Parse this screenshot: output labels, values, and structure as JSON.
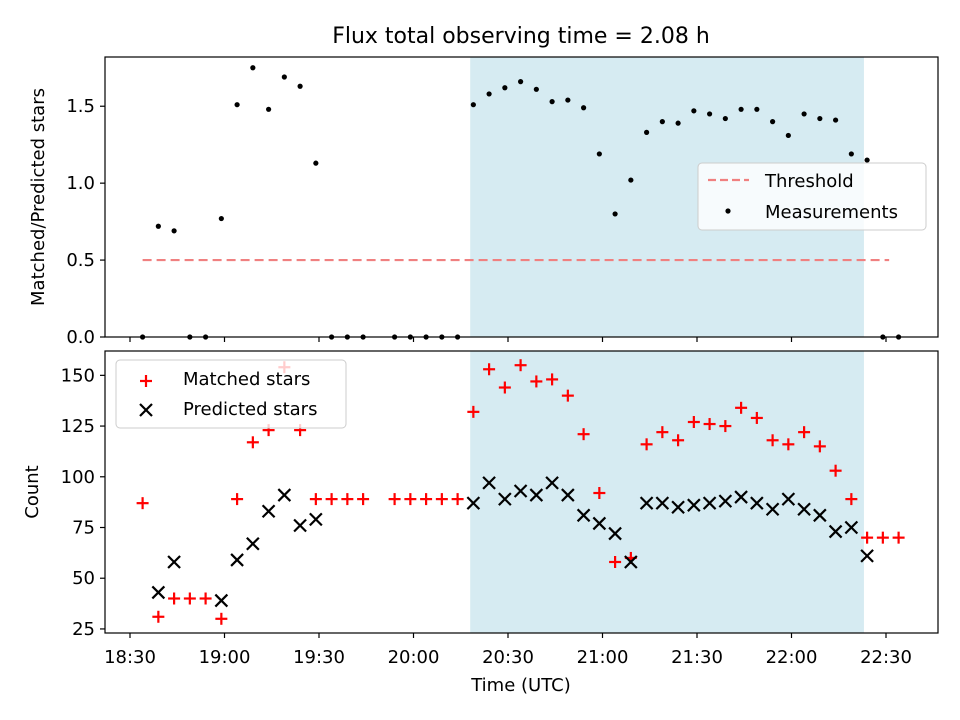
{
  "title": "Flux total observing time = 2.08 h",
  "xlabel": "Time (UTC)",
  "x_ticks": [
    "18:30",
    "19:00",
    "19:30",
    "20:00",
    "20:30",
    "21:00",
    "21:30",
    "22:00",
    "22:30"
  ],
  "highlight_span": {
    "start": "20:18",
    "end": "22:23",
    "color": "#add8e6"
  },
  "chart_data": [
    {
      "type": "scatter",
      "panel": "top",
      "title": "Flux total observing time = 2.08 h",
      "xlabel": "",
      "ylabel": "Matched/Predicted stars",
      "ylim": [
        0,
        1.82
      ],
      "yticks": [
        "0.0",
        "0.5",
        "1.0",
        "1.5"
      ],
      "legend": {
        "placement": "center-right",
        "entries": [
          "Threshold",
          "Measurements"
        ]
      },
      "series": [
        {
          "name": "Threshold",
          "style": "dashed-line",
          "color": "#f08080",
          "x": [
            "18:34",
            "22:31"
          ],
          "y": [
            0.5,
            0.5
          ]
        },
        {
          "name": "Measurements",
          "style": "dot",
          "color": "#000000",
          "x": [
            "18:34",
            "18:39",
            "18:44",
            "18:49",
            "18:54",
            "18:59",
            "19:04",
            "19:09",
            "19:14",
            "19:19",
            "19:24",
            "19:29",
            "19:34",
            "19:39",
            "19:44",
            "19:54",
            "19:59",
            "20:04",
            "20:09",
            "20:14",
            "20:19",
            "20:24",
            "20:29",
            "20:34",
            "20:39",
            "20:44",
            "20:49",
            "20:54",
            "20:59",
            "21:04",
            "21:09",
            "21:14",
            "21:19",
            "21:24",
            "21:29",
            "21:34",
            "21:39",
            "21:44",
            "21:49",
            "21:54",
            "21:59",
            "22:04",
            "22:09",
            "22:14",
            "22:19",
            "22:24",
            "22:29",
            "22:34"
          ],
          "y": [
            0.0,
            0.72,
            0.69,
            0.0,
            0.0,
            0.77,
            1.51,
            1.75,
            1.48,
            1.69,
            1.63,
            1.13,
            0.0,
            0.0,
            0.0,
            0.0,
            0.0,
            0.0,
            0.0,
            0.0,
            1.51,
            1.58,
            1.62,
            1.66,
            1.61,
            1.53,
            1.54,
            1.49,
            1.19,
            0.8,
            1.02,
            1.33,
            1.4,
            1.39,
            1.47,
            1.45,
            1.42,
            1.48,
            1.48,
            1.4,
            1.31,
            1.45,
            1.42,
            1.41,
            1.19,
            1.15,
            0.0,
            0.0
          ]
        }
      ]
    },
    {
      "type": "scatter",
      "panel": "bottom",
      "xlabel": "Time (UTC)",
      "ylabel": "Count",
      "ylim": [
        23,
        162
      ],
      "yticks": [
        "25",
        "50",
        "75",
        "100",
        "125",
        "150"
      ],
      "legend": {
        "placement": "top-left",
        "entries": [
          "Matched stars",
          "Predicted stars"
        ]
      },
      "series": [
        {
          "name": "Matched stars",
          "marker": "+",
          "color": "#ff0000",
          "x": [
            "18:34",
            "18:39",
            "18:44",
            "18:49",
            "18:54",
            "18:59",
            "19:04",
            "19:09",
            "19:14",
            "19:19",
            "19:24",
            "19:29",
            "19:34",
            "19:39",
            "19:44",
            "19:54",
            "19:59",
            "20:04",
            "20:09",
            "20:14",
            "20:19",
            "20:24",
            "20:29",
            "20:34",
            "20:39",
            "20:44",
            "20:49",
            "20:54",
            "20:59",
            "21:04",
            "21:09",
            "21:14",
            "21:19",
            "21:24",
            "21:29",
            "21:34",
            "21:39",
            "21:44",
            "21:49",
            "21:54",
            "21:59",
            "22:04",
            "22:09",
            "22:14",
            "22:19",
            "22:24",
            "22:29",
            "22:34"
          ],
          "y": [
            87,
            31,
            40,
            40,
            40,
            30,
            89,
            117,
            123,
            154,
            123,
            89,
            89,
            89,
            89,
            89,
            89,
            89,
            89,
            89,
            132,
            153,
            144,
            155,
            147,
            148,
            140,
            121,
            92,
            58,
            60,
            116,
            122,
            118,
            127,
            126,
            125,
            134,
            129,
            118,
            116,
            122,
            115,
            103,
            89,
            70,
            70,
            70
          ]
        },
        {
          "name": "Predicted stars",
          "marker": "x",
          "color": "#000000",
          "x": [
            "18:39",
            "18:44",
            "18:59",
            "19:04",
            "19:09",
            "19:14",
            "19:19",
            "19:24",
            "19:29",
            "20:19",
            "20:24",
            "20:29",
            "20:34",
            "20:39",
            "20:44",
            "20:49",
            "20:54",
            "20:59",
            "21:04",
            "21:09",
            "21:14",
            "21:19",
            "21:24",
            "21:29",
            "21:34",
            "21:39",
            "21:44",
            "21:49",
            "21:54",
            "21:59",
            "22:04",
            "22:09",
            "22:14",
            "22:19",
            "22:24"
          ],
          "y": [
            43,
            58,
            39,
            59,
            67,
            83,
            91,
            76,
            79,
            87,
            97,
            89,
            93,
            91,
            97,
            91,
            81,
            77,
            72,
            58,
            87,
            87,
            85,
            86,
            87,
            88,
            90,
            87,
            84,
            89,
            84,
            81,
            73,
            75,
            61
          ]
        }
      ]
    }
  ]
}
